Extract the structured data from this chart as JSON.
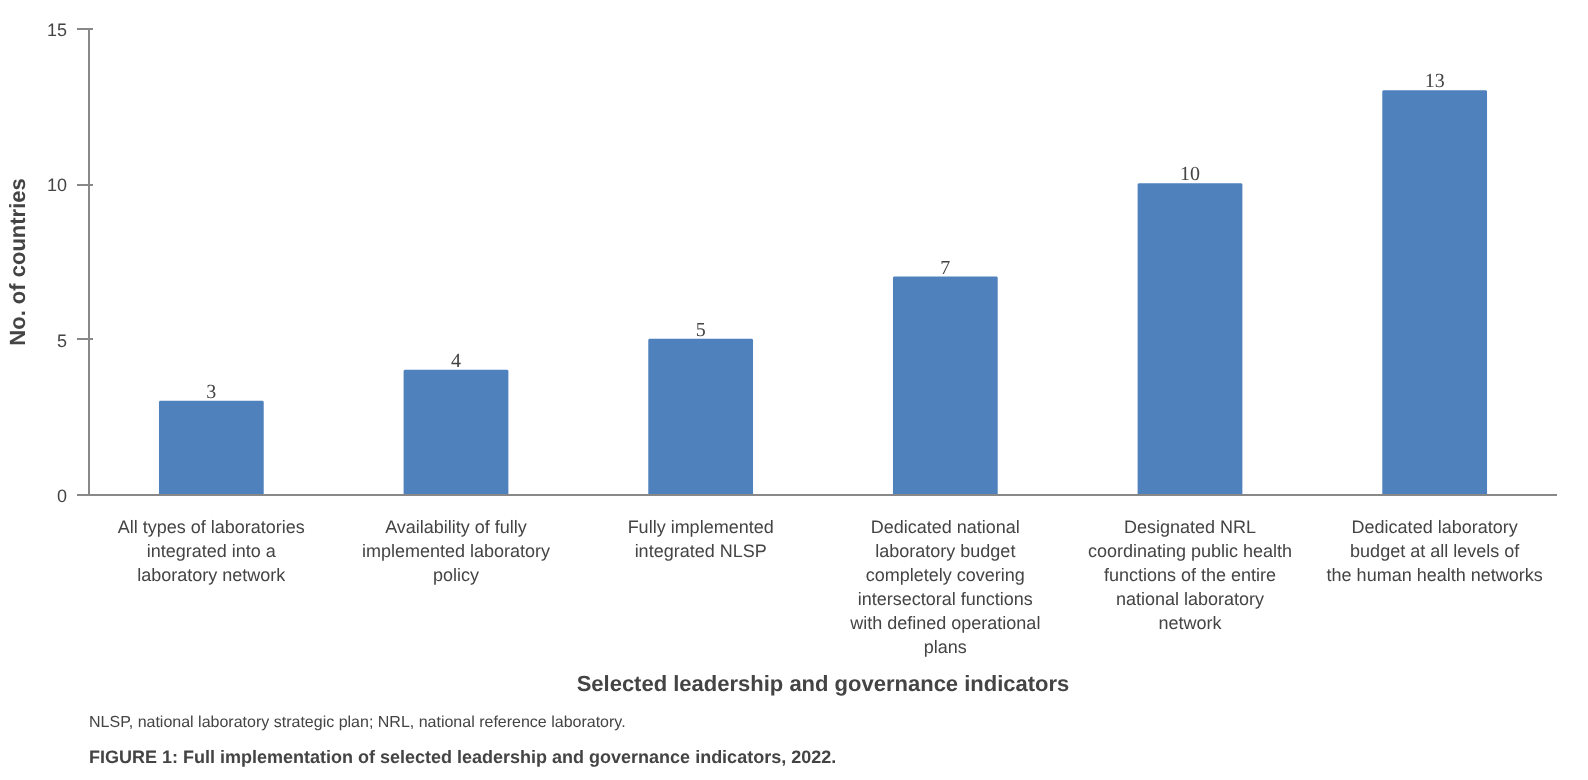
{
  "chart_data": {
    "type": "bar",
    "xlabel": "Selected leadership and governance indicators",
    "ylabel": "No. of countries",
    "categories": [
      "All types of laboratories integrated into a laboratory network",
      "Availability of fully implemented laboratory policy",
      "Fully implemented integrated NLSP",
      "Dedicated national laboratory budget completely covering intersectoral functions with defined operational plans",
      "Designated NRL coordinating public health functions of the entire national laboratory network",
      "Dedicated laboratory budget at all levels of the human health networks"
    ],
    "values": [
      3,
      4,
      5,
      7,
      10,
      13
    ],
    "color": "#4f81bd",
    "ylim": [
      0,
      15
    ],
    "yticks": [
      0,
      5,
      10,
      15
    ],
    "grid": false,
    "data_labels": true,
    "annotations": [
      "NLSP, national laboratory strategic plan; NRL, national reference laboratory.",
      "FIGURE 1: Full implementation of selected leadership and governance indicators, 2022."
    ]
  }
}
